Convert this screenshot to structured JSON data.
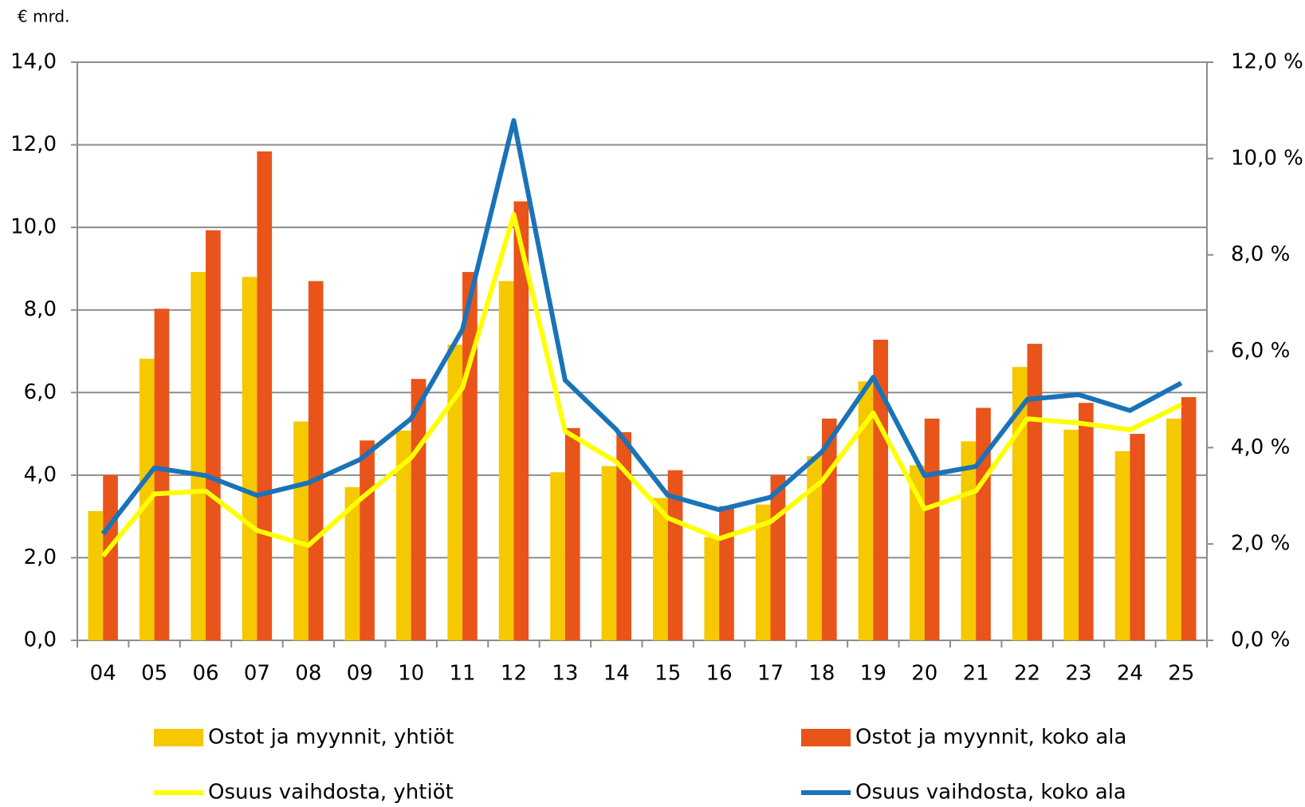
{
  "chart_data": {
    "type": "bar-line",
    "y_unit_label": "€ mrd.",
    "categories": [
      "04",
      "05",
      "06",
      "07",
      "08",
      "09",
      "10",
      "11",
      "12",
      "13",
      "14",
      "15",
      "16",
      "17",
      "18",
      "19",
      "20",
      "21",
      "22",
      "23",
      "24",
      "25"
    ],
    "series": [
      {
        "name": "Ostot ja myynnit, yhtiöt",
        "kind": "bar",
        "color": "#f5c800",
        "values": [
          3.13,
          6.82,
          8.92,
          8.8,
          5.3,
          3.71,
          5.08,
          7.16,
          8.7,
          4.07,
          4.22,
          3.45,
          2.5,
          3.29,
          4.46,
          6.27,
          4.24,
          4.82,
          6.62,
          5.1,
          4.58,
          5.37
        ]
      },
      {
        "name": "Ostot ja myynnit, koko ala",
        "kind": "bar",
        "color": "#e8541a",
        "values": [
          4.0,
          8.03,
          9.93,
          11.84,
          8.7,
          4.84,
          6.33,
          8.92,
          10.63,
          5.14,
          5.04,
          4.12,
          3.25,
          4.0,
          5.37,
          7.28,
          5.37,
          5.63,
          7.18,
          5.75,
          5.0,
          5.89
        ]
      },
      {
        "name": "Osuus vaihdosta, yhtiöt",
        "kind": "line",
        "axis": "y2",
        "color": "#ffff00",
        "values": [
          1.75,
          3.04,
          3.1,
          2.28,
          1.97,
          2.92,
          3.79,
          5.24,
          8.84,
          4.34,
          3.7,
          2.54,
          2.11,
          2.46,
          3.3,
          4.72,
          2.73,
          3.1,
          4.6,
          4.51,
          4.37,
          4.89
        ]
      },
      {
        "name": "Osuus vaihdosta, koko ala",
        "kind": "line",
        "axis": "y2",
        "color": "#1a73b8",
        "values": [
          2.21,
          3.58,
          3.42,
          3.01,
          3.27,
          3.75,
          4.6,
          6.45,
          10.79,
          5.4,
          4.37,
          3.01,
          2.71,
          2.97,
          3.91,
          5.46,
          3.42,
          3.61,
          5.0,
          5.1,
          4.77,
          5.34
        ]
      }
    ],
    "ylim": [
      0,
      14
    ],
    "yticks": [
      {
        "value": 0,
        "label": "0,0"
      },
      {
        "value": 2,
        "label": "2,0"
      },
      {
        "value": 4,
        "label": "4,0"
      },
      {
        "value": 6,
        "label": "6,0"
      },
      {
        "value": 8,
        "label": "8,0"
      },
      {
        "value": 10,
        "label": "10,0"
      },
      {
        "value": 12,
        "label": "12,0"
      },
      {
        "value": 14,
        "label": "14,0"
      }
    ],
    "y2lim": [
      0,
      12
    ],
    "y2ticks": [
      {
        "value": 0,
        "label": "0,0 %"
      },
      {
        "value": 2,
        "label": "2,0 %"
      },
      {
        "value": 4,
        "label": "4,0 %"
      },
      {
        "value": 6,
        "label": "6,0 %"
      },
      {
        "value": 8,
        "label": "8,0 %"
      },
      {
        "value": 10,
        "label": "10,0 %"
      },
      {
        "value": 12,
        "label": "12,0 %"
      }
    ],
    "grid": true
  }
}
